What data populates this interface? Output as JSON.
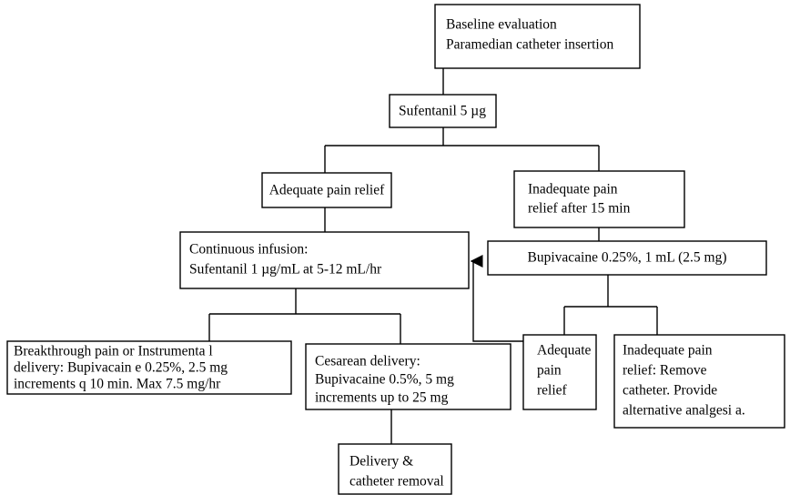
{
  "nodes": [
    {
      "lines": [
        "Baseline evaluation",
        "Paramedian catheter insertion"
      ]
    },
    {
      "lines": [
        "Sufentanil 5 µg"
      ]
    },
    {
      "lines": [
        "Adequate pain relief"
      ]
    },
    {
      "lines": [
        "Inadequate pain",
        "relief after 15 min"
      ]
    },
    {
      "lines": [
        "Continuous infusion:",
        "Sufentanil 1 µg/mL at 5-12 mL/hr"
      ]
    },
    {
      "lines": [
        "Bupivacaine 0.25%, 1 mL (2.5 mg)"
      ]
    },
    {
      "lines": [
        "Adequate",
        "pain",
        "relief"
      ]
    },
    {
      "lines": [
        "Inadequate pain",
        "relief: Remove",
        "catheter. Provide",
        "alternative analgesi a."
      ]
    },
    {
      "lines": [
        "Breakthrough pain or Instrumenta l",
        "delivery: Bupivacain e 0.25%, 2.5 mg",
        "increments q 10 min. Max 7.5 mg/hr"
      ]
    },
    {
      "lines": [
        "Cesarean delivery:",
        "Bupivacaine 0.5%, 5 mg",
        "increments up to 25 mg"
      ]
    },
    {
      "lines": [
        "Delivery &",
        "catheter removal"
      ]
    }
  ]
}
